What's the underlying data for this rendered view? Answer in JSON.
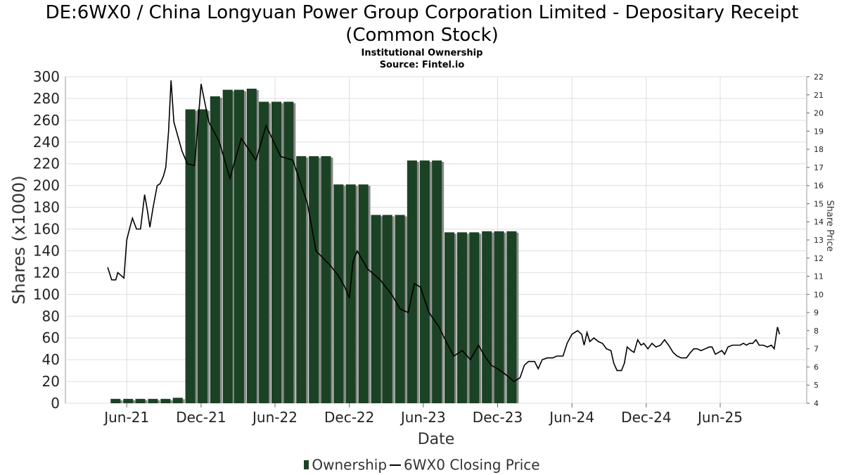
{
  "title_line1": "DE:6WX0 / China Longyuan Power Group Corporation Limited - Depositary Receipt",
  "title_line2": "(Common Stock)",
  "subtitle1": "Institutional Ownership",
  "subtitle2": "Source: Fintel.io",
  "legend": {
    "ownership": "Ownership",
    "price": "6WX0 Closing Price"
  },
  "colors": {
    "bar": "#1b4224",
    "bar_shadow": "#8a8a8a",
    "line": "#000000",
    "grid": "#dddddd"
  },
  "chart_data": {
    "type": "bar+line",
    "xlabel": "Date",
    "ylabel": "Shares (x1000)",
    "y2label": "Share Price",
    "ylim": [
      0,
      300
    ],
    "y2lim": [
      4,
      22
    ],
    "yticks": [
      0,
      20,
      40,
      60,
      80,
      100,
      120,
      140,
      160,
      180,
      200,
      220,
      240,
      260,
      280,
      300
    ],
    "y2ticks": [
      4,
      5,
      6,
      7,
      8,
      9,
      10,
      11,
      12,
      13,
      14,
      15,
      16,
      17,
      18,
      19,
      20,
      21,
      22
    ],
    "xticks": [
      {
        "label": "Jun-21",
        "date": "2021-06-01"
      },
      {
        "label": "Dec-21",
        "date": "2021-12-01"
      },
      {
        "label": "Jun-22",
        "date": "2022-06-01"
      },
      {
        "label": "Dec-22",
        "date": "2022-12-01"
      },
      {
        "label": "Jun-23",
        "date": "2023-06-01"
      },
      {
        "label": "Dec-23",
        "date": "2023-12-01"
      },
      {
        "label": "Jun-24",
        "date": "2024-06-01"
      },
      {
        "label": "Dec-24",
        "date": "2024-12-01"
      },
      {
        "label": "Jun-25",
        "date": "2025-06-01"
      }
    ],
    "xrange": [
      "2021-01-01",
      "2025-12-31"
    ],
    "grid": true,
    "legend_position": "bottom",
    "series": [
      {
        "name": "Ownership",
        "type": "bar",
        "points": [
          [
            "2021-05-01",
            4
          ],
          [
            "2021-06-01",
            4
          ],
          [
            "2021-07-01",
            4
          ],
          [
            "2021-08-01",
            4
          ],
          [
            "2021-09-01",
            4
          ],
          [
            "2021-10-01",
            5
          ],
          [
            "2021-11-01",
            270
          ],
          [
            "2021-12-01",
            270
          ],
          [
            "2022-01-01",
            282
          ],
          [
            "2022-02-01",
            288
          ],
          [
            "2022-03-01",
            288
          ],
          [
            "2022-04-01",
            289
          ],
          [
            "2022-05-01",
            277
          ],
          [
            "2022-06-01",
            277
          ],
          [
            "2022-07-01",
            277
          ],
          [
            "2022-08-01",
            227
          ],
          [
            "2022-09-01",
            227
          ],
          [
            "2022-10-01",
            227
          ],
          [
            "2022-11-01",
            201
          ],
          [
            "2022-12-01",
            201
          ],
          [
            "2023-01-01",
            201
          ],
          [
            "2023-02-01",
            173
          ],
          [
            "2023-03-01",
            173
          ],
          [
            "2023-04-01",
            173
          ],
          [
            "2023-05-01",
            223
          ],
          [
            "2023-06-01",
            223
          ],
          [
            "2023-07-01",
            223
          ],
          [
            "2023-08-01",
            157
          ],
          [
            "2023-09-01",
            157
          ],
          [
            "2023-10-01",
            157
          ],
          [
            "2023-11-01",
            158
          ],
          [
            "2023-12-01",
            158
          ],
          [
            "2024-01-01",
            158
          ]
        ]
      },
      {
        "name": "6WX0 Closing Price",
        "type": "line",
        "axis": "right",
        "points": [
          [
            "2021-04-15",
            11.5
          ],
          [
            "2021-04-25",
            10.8
          ],
          [
            "2021-05-05",
            10.8
          ],
          [
            "2021-05-10",
            11.2
          ],
          [
            "2021-05-25",
            10.9
          ],
          [
            "2021-06-01",
            13.0
          ],
          [
            "2021-06-10",
            13.8
          ],
          [
            "2021-06-15",
            14.2
          ],
          [
            "2021-06-25",
            13.6
          ],
          [
            "2021-07-05",
            13.6
          ],
          [
            "2021-07-15",
            15.5
          ],
          [
            "2021-07-22",
            14.6
          ],
          [
            "2021-07-28",
            13.7
          ],
          [
            "2021-08-05",
            14.8
          ],
          [
            "2021-08-15",
            16.0
          ],
          [
            "2021-08-22",
            16.1
          ],
          [
            "2021-08-30",
            16.5
          ],
          [
            "2021-09-05",
            17.0
          ],
          [
            "2021-09-12",
            19.0
          ],
          [
            "2021-09-18",
            21.8
          ],
          [
            "2021-09-25",
            19.5
          ],
          [
            "2021-10-05",
            18.7
          ],
          [
            "2021-10-15",
            17.9
          ],
          [
            "2021-10-28",
            17.2
          ],
          [
            "2021-11-15",
            17.1
          ],
          [
            "2021-12-01",
            21.6
          ],
          [
            "2021-12-10",
            20.6
          ],
          [
            "2021-12-20",
            19.5
          ],
          [
            "2022-01-15",
            18.4
          ],
          [
            "2022-02-10",
            16.4
          ],
          [
            "2022-03-10",
            18.6
          ],
          [
            "2022-04-15",
            17.4
          ],
          [
            "2022-05-10",
            19.3
          ],
          [
            "2022-06-15",
            17.6
          ],
          [
            "2022-07-15",
            17.4
          ],
          [
            "2022-08-20",
            15.0
          ],
          [
            "2022-09-10",
            12.4
          ],
          [
            "2022-10-15",
            11.6
          ],
          [
            "2022-11-05",
            11.0
          ],
          [
            "2022-11-20",
            10.4
          ],
          [
            "2022-12-01",
            9.8
          ],
          [
            "2022-12-10",
            11.8
          ],
          [
            "2022-12-20",
            12.4
          ],
          [
            "2023-01-15",
            11.4
          ],
          [
            "2023-02-15",
            10.8
          ],
          [
            "2023-03-15",
            10.0
          ],
          [
            "2023-04-05",
            9.2
          ],
          [
            "2023-04-25",
            9.0
          ],
          [
            "2023-05-10",
            10.6
          ],
          [
            "2023-05-25",
            10.4
          ],
          [
            "2023-06-15",
            9.0
          ],
          [
            "2023-07-10",
            8.2
          ],
          [
            "2023-07-25",
            7.5
          ],
          [
            "2023-08-15",
            6.6
          ],
          [
            "2023-09-05",
            6.9
          ],
          [
            "2023-09-25",
            6.4
          ],
          [
            "2023-10-15",
            7.2
          ],
          [
            "2023-10-30",
            6.6
          ],
          [
            "2023-11-15",
            6.1
          ],
          [
            "2023-12-01",
            5.9
          ],
          [
            "2023-12-20",
            5.6
          ],
          [
            "2024-01-10",
            5.2
          ],
          [
            "2024-01-25",
            5.4
          ],
          [
            "2024-02-05",
            6.1
          ],
          [
            "2024-02-15",
            6.3
          ],
          [
            "2024-03-01",
            6.3
          ],
          [
            "2024-03-10",
            5.9
          ],
          [
            "2024-03-20",
            6.4
          ],
          [
            "2024-04-01",
            6.5
          ],
          [
            "2024-04-15",
            6.5
          ],
          [
            "2024-04-25",
            6.6
          ],
          [
            "2024-05-10",
            6.6
          ],
          [
            "2024-05-20",
            7.3
          ],
          [
            "2024-06-01",
            7.8
          ],
          [
            "2024-06-15",
            8.0
          ],
          [
            "2024-06-25",
            7.8
          ],
          [
            "2024-07-01",
            7.2
          ],
          [
            "2024-07-08",
            7.9
          ],
          [
            "2024-07-15",
            7.4
          ],
          [
            "2024-07-25",
            7.6
          ],
          [
            "2024-08-05",
            7.4
          ],
          [
            "2024-08-15",
            7.3
          ],
          [
            "2024-08-25",
            7.0
          ],
          [
            "2024-09-05",
            6.9
          ],
          [
            "2024-09-12",
            6.2
          ],
          [
            "2024-09-20",
            5.8
          ],
          [
            "2024-10-01",
            5.8
          ],
          [
            "2024-10-08",
            6.2
          ],
          [
            "2024-10-15",
            7.1
          ],
          [
            "2024-10-25",
            6.9
          ],
          [
            "2024-11-01",
            6.8
          ],
          [
            "2024-11-10",
            7.5
          ],
          [
            "2024-11-18",
            7.2
          ],
          [
            "2024-11-25",
            7.3
          ],
          [
            "2024-12-05",
            7.0
          ],
          [
            "2024-12-15",
            7.3
          ],
          [
            "2024-12-25",
            7.1
          ],
          [
            "2025-01-05",
            7.2
          ],
          [
            "2025-01-15",
            7.5
          ],
          [
            "2025-01-25",
            7.2
          ],
          [
            "2025-02-05",
            6.8
          ],
          [
            "2025-02-15",
            6.6
          ],
          [
            "2025-02-25",
            6.5
          ],
          [
            "2025-03-10",
            6.5
          ],
          [
            "2025-03-20",
            6.8
          ],
          [
            "2025-03-28",
            7.0
          ],
          [
            "2025-04-05",
            7.0
          ],
          [
            "2025-04-15",
            6.9
          ],
          [
            "2025-04-25",
            7.0
          ],
          [
            "2025-05-05",
            7.1
          ],
          [
            "2025-05-12",
            7.1
          ],
          [
            "2025-05-20",
            6.7
          ],
          [
            "2025-05-28",
            6.8
          ],
          [
            "2025-06-05",
            6.9
          ],
          [
            "2025-06-12",
            6.7
          ],
          [
            "2025-06-20",
            7.1
          ],
          [
            "2025-07-01",
            7.2
          ],
          [
            "2025-07-10",
            7.2
          ],
          [
            "2025-07-20",
            7.2
          ],
          [
            "2025-07-28",
            7.3
          ],
          [
            "2025-08-05",
            7.2
          ],
          [
            "2025-08-12",
            7.3
          ],
          [
            "2025-08-20",
            7.3
          ],
          [
            "2025-08-28",
            7.5
          ],
          [
            "2025-09-05",
            7.2
          ],
          [
            "2025-09-15",
            7.2
          ],
          [
            "2025-09-25",
            7.1
          ],
          [
            "2025-10-05",
            7.2
          ],
          [
            "2025-10-12",
            7.0
          ],
          [
            "2025-10-20",
            8.2
          ],
          [
            "2025-10-25",
            7.8
          ]
        ]
      }
    ]
  }
}
